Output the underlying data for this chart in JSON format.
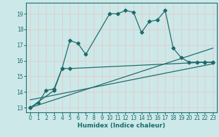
{
  "xlabel": "Humidex (Indice chaleur)",
  "bg_color": "#cce8e8",
  "grid_color": "#e8c8c8",
  "line_color": "#1a6b6b",
  "xlim": [
    -0.5,
    23.5
  ],
  "ylim": [
    12.7,
    19.7
  ],
  "yticks": [
    13,
    14,
    15,
    16,
    17,
    18,
    19
  ],
  "xticks": [
    0,
    1,
    2,
    3,
    4,
    5,
    6,
    7,
    8,
    9,
    10,
    11,
    12,
    13,
    14,
    15,
    16,
    17,
    18,
    19,
    20,
    21,
    22,
    23
  ],
  "series1_x": [
    0,
    1,
    2,
    3,
    4,
    5,
    6,
    7,
    10,
    11,
    12,
    13,
    14,
    15,
    16,
    17,
    18,
    19,
    20,
    21,
    22,
    23
  ],
  "series1_y": [
    13.0,
    13.3,
    14.1,
    14.2,
    15.5,
    17.3,
    17.1,
    16.4,
    19.0,
    19.0,
    19.2,
    19.1,
    17.8,
    18.5,
    18.6,
    19.2,
    16.8,
    16.2,
    15.9,
    15.9,
    15.9,
    15.9
  ],
  "series2_x": [
    0,
    3,
    4,
    5,
    22,
    23
  ],
  "series2_y": [
    13.0,
    14.1,
    15.5,
    15.5,
    15.9,
    15.9
  ],
  "series3_x": [
    0,
    23
  ],
  "series3_y": [
    13.0,
    16.8
  ],
  "series4_x": [
    0,
    23
  ],
  "series4_y": [
    13.5,
    15.8
  ]
}
